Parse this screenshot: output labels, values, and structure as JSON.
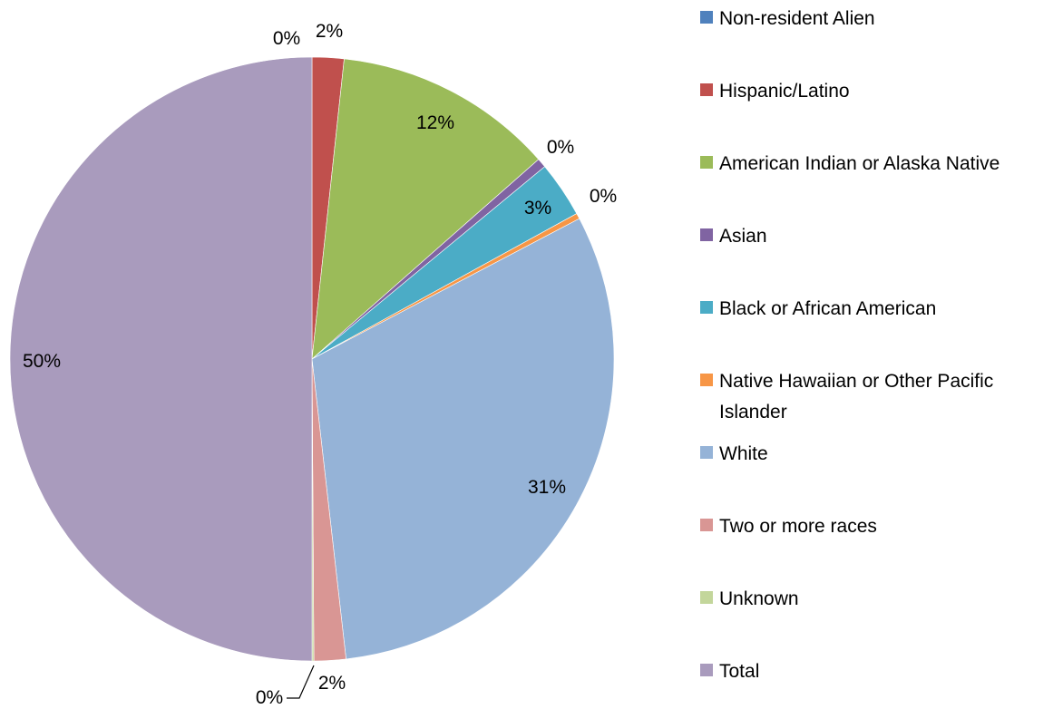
{
  "chart_data": {
    "type": "pie",
    "title": "",
    "legend_position": "right",
    "slices": [
      {
        "name": "Non-resident Alien",
        "value": 0.0,
        "label": "0%",
        "color": "#4F81BD"
      },
      {
        "name": "Hispanic/Latino",
        "value": 1.7,
        "label": "2%",
        "color": "#C0504D"
      },
      {
        "name": "American Indian or Alaska Native",
        "value": 11.8,
        "label": "12%",
        "color": "#9BBB59"
      },
      {
        "name": "Asian",
        "value": 0.5,
        "label": "0%",
        "color": "#8064A2"
      },
      {
        "name": "Black or African American",
        "value": 3.0,
        "label": "3%",
        "color": "#4BACC6"
      },
      {
        "name": "Native Hawaiian or Other Pacific Islander",
        "value": 0.3,
        "label": "0%",
        "color": "#F79646"
      },
      {
        "name": "White",
        "value": 30.9,
        "label": "31%",
        "color": "#95B3D7"
      },
      {
        "name": "Two or more races",
        "value": 1.7,
        "label": "2%",
        "color": "#D99694"
      },
      {
        "name": "Unknown",
        "value": 0.1,
        "label": "0%",
        "color": "#C3D69B"
      },
      {
        "name": "Total",
        "value": 50.0,
        "label": "50%",
        "color": "#A99BBD"
      }
    ],
    "legend_lines": [
      [
        "Non-resident Alien"
      ],
      [
        "Hispanic/Latino"
      ],
      [
        "American Indian or Alaska Native"
      ],
      [
        "Asian"
      ],
      [
        "Black or African American"
      ],
      [
        "Native Hawaiian or Other Pacific",
        "Islander"
      ],
      [
        "White"
      ],
      [
        "Two or more races"
      ],
      [
        "Unknown"
      ],
      [
        "Total"
      ]
    ]
  }
}
